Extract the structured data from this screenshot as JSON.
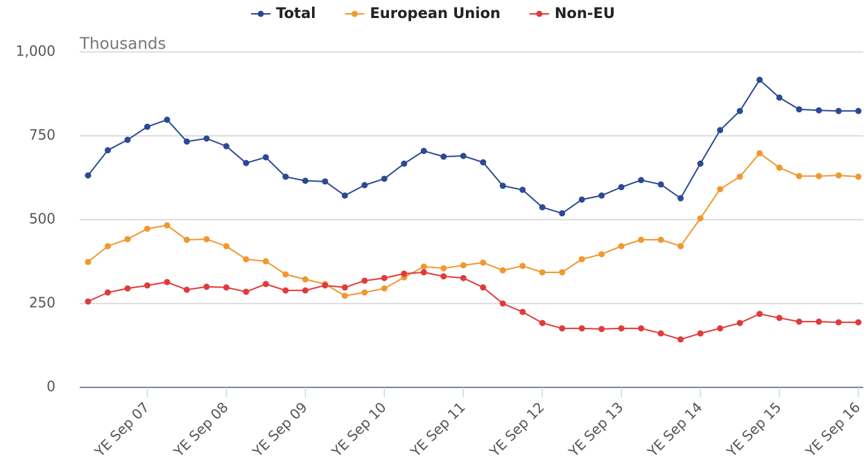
{
  "chart_data": {
    "type": "line",
    "y_label": "Thousands",
    "categories": [
      null,
      null,
      null,
      "YE Sep 07",
      null,
      null,
      null,
      "YE Sep 08",
      null,
      null,
      null,
      "YE Sep 09",
      null,
      null,
      null,
      "YE Sep 10",
      null,
      null,
      null,
      "YE Sep 11",
      null,
      null,
      null,
      "YE Sep 12",
      null,
      null,
      null,
      "YE Sep 13",
      null,
      null,
      null,
      "YE Sep 14",
      null,
      null,
      null,
      "YE Sep 15",
      null,
      null,
      null,
      "YE Sep 16"
    ],
    "series": [
      {
        "name": "Total",
        "color": "#2b4a94",
        "values": [
          632,
          707,
          738,
          777,
          798,
          733,
          742,
          719,
          669,
          686,
          628,
          616,
          614,
          572,
          603,
          622,
          667,
          705,
          688,
          690,
          671,
          601,
          589,
          537,
          519,
          560,
          572,
          597,
          618,
          605,
          564,
          667,
          767,
          824,
          917,
          864,
          829,
          826,
          824,
          824
        ]
      },
      {
        "name": "European Union",
        "color": "#f0982f",
        "values": [
          374,
          421,
          442,
          473,
          483,
          440,
          442,
          421,
          382,
          376,
          337,
          322,
          308,
          273,
          283,
          295,
          328,
          360,
          355,
          364,
          372,
          349,
          362,
          343,
          343,
          382,
          397,
          421,
          440,
          440,
          421,
          504,
          591,
          628,
          698,
          655,
          630,
          630,
          632,
          628
        ]
      },
      {
        "name": "Non-EU",
        "color": "#e03b3b",
        "values": [
          256,
          283,
          295,
          304,
          314,
          291,
          300,
          298,
          285,
          308,
          289,
          289,
          304,
          298,
          318,
          326,
          339,
          343,
          331,
          326,
          298,
          250,
          225,
          192,
          176,
          176,
          174,
          176,
          176,
          161,
          143,
          161,
          176,
          192,
          219,
          207,
          196,
          196,
          194,
          194
        ]
      }
    ],
    "ylim": [
      0,
      1000
    ],
    "yticks": [
      0,
      250,
      500,
      750,
      {
        "value": 1000,
        "label": "1,000"
      }
    ],
    "grid": true,
    "legend": "top"
  }
}
